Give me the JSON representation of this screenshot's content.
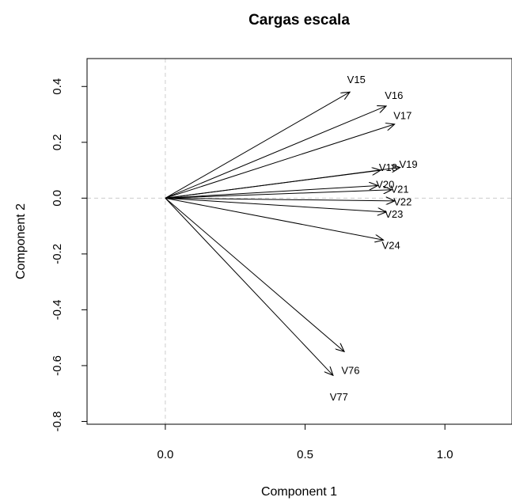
{
  "chart_data": {
    "type": "biplot",
    "title": "Cargas escala",
    "xlabel": "Component 1",
    "ylabel": "Component 2",
    "xlim": [
      -0.28,
      1.24
    ],
    "ylim": [
      -0.81,
      0.5
    ],
    "xticks": [
      0.0,
      0.5,
      1.0
    ],
    "yticks": [
      -0.8,
      -0.6,
      -0.4,
      -0.2,
      0.0,
      0.2,
      0.4
    ],
    "xtick_labels": [
      "0.0",
      "0.5",
      "1.0"
    ],
    "ytick_labels": [
      "-0.8",
      "-0.6",
      "-0.4",
      "-0.2",
      "0.0",
      "0.2",
      "0.4"
    ],
    "reference_lines": {
      "x": 0,
      "y": 0,
      "style": "dashed",
      "color": "#cccccc"
    },
    "grid": false,
    "arrow_color": "#000000",
    "vectors": [
      {
        "name": "V15",
        "x": 0.66,
        "y": 0.38
      },
      {
        "name": "V16",
        "x": 0.79,
        "y": 0.33
      },
      {
        "name": "V17",
        "x": 0.82,
        "y": 0.265
      },
      {
        "name": "V18",
        "x": 0.77,
        "y": 0.1
      },
      {
        "name": "V19",
        "x": 0.84,
        "y": 0.11
      },
      {
        "name": "V20",
        "x": 0.76,
        "y": 0.045
      },
      {
        "name": "V21",
        "x": 0.81,
        "y": 0.03
      },
      {
        "name": "V22",
        "x": 0.82,
        "y": -0.01
      },
      {
        "name": "V23",
        "x": 0.79,
        "y": -0.05
      },
      {
        "name": "V24",
        "x": 0.78,
        "y": -0.15
      },
      {
        "name": "V76",
        "x": 0.64,
        "y": -0.55
      },
      {
        "name": "V77",
        "x": 0.6,
        "y": -0.635
      }
    ]
  }
}
